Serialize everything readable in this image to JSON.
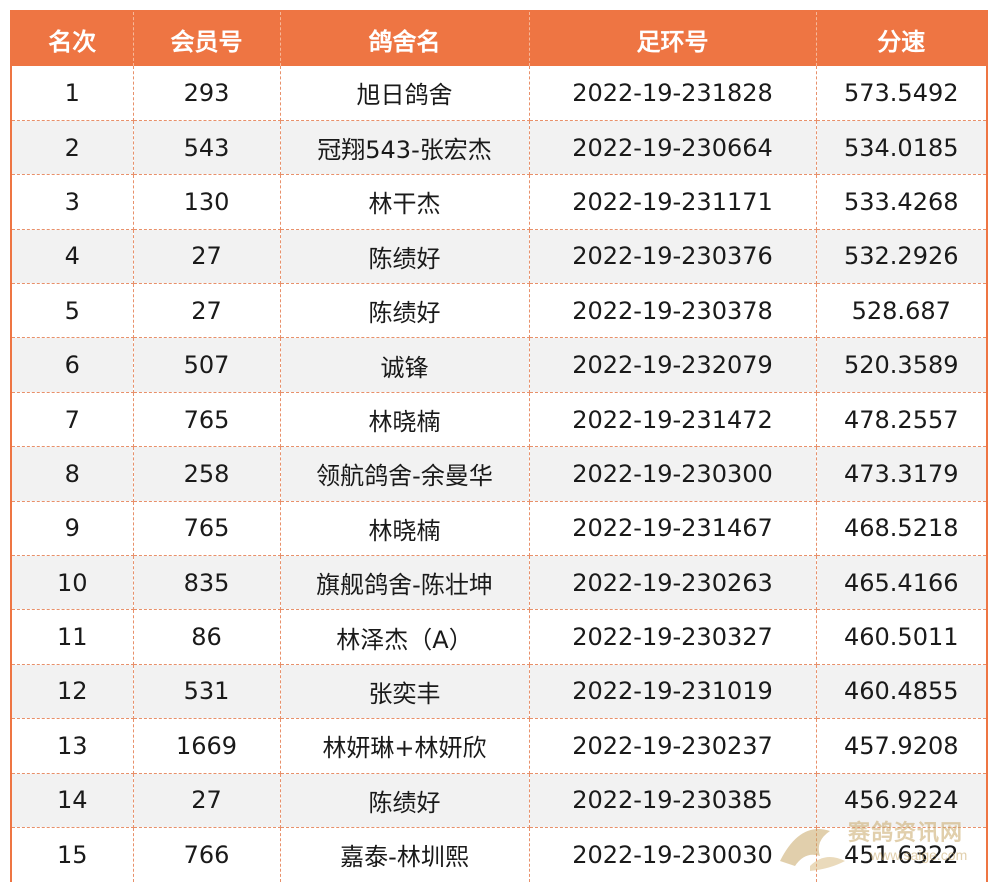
{
  "table": {
    "headers": [
      "名次",
      "会员号",
      "鸽舍名",
      "足环号",
      "分速"
    ],
    "rows": [
      {
        "rank": "1",
        "member": "293",
        "loft": "旭日鸽舍",
        "ring": "2022-19-231828",
        "speed": "573.5492"
      },
      {
        "rank": "2",
        "member": "543",
        "loft": "冠翔543-张宏杰",
        "ring": "2022-19-230664",
        "speed": "534.0185"
      },
      {
        "rank": "3",
        "member": "130",
        "loft": "林干杰",
        "ring": "2022-19-231171",
        "speed": "533.4268"
      },
      {
        "rank": "4",
        "member": "27",
        "loft": "陈绩好",
        "ring": "2022-19-230376",
        "speed": "532.2926"
      },
      {
        "rank": "5",
        "member": "27",
        "loft": "陈绩好",
        "ring": "2022-19-230378",
        "speed": "528.687"
      },
      {
        "rank": "6",
        "member": "507",
        "loft": "诚锋",
        "ring": "2022-19-232079",
        "speed": "520.3589"
      },
      {
        "rank": "7",
        "member": "765",
        "loft": "林晓楠",
        "ring": "2022-19-231472",
        "speed": "478.2557"
      },
      {
        "rank": "8",
        "member": "258",
        "loft": "领航鸽舍-余曼华",
        "ring": "2022-19-230300",
        "speed": "473.3179"
      },
      {
        "rank": "9",
        "member": "765",
        "loft": "林晓楠",
        "ring": "2022-19-231467",
        "speed": "468.5218"
      },
      {
        "rank": "10",
        "member": "835",
        "loft": "旗舰鸽舍-陈壮坤",
        "ring": "2022-19-230263",
        "speed": "465.4166"
      },
      {
        "rank": "11",
        "member": "86",
        "loft": "林泽杰（A）",
        "ring": "2022-19-230327",
        "speed": "460.5011"
      },
      {
        "rank": "12",
        "member": "531",
        "loft": "张奕丰",
        "ring": "2022-19-231019",
        "speed": "460.4855"
      },
      {
        "rank": "13",
        "member": "1669",
        "loft": "林妍琳+林妍欣",
        "ring": "2022-19-230237",
        "speed": "457.9208"
      },
      {
        "rank": "14",
        "member": "27",
        "loft": "陈绩好",
        "ring": "2022-19-230385",
        "speed": "456.9224"
      },
      {
        "rank": "15",
        "member": "766",
        "loft": "嘉泰-林圳熙",
        "ring": "2022-19-230030",
        "speed": "451.6322"
      }
    ]
  },
  "watermark": {
    "text": "赛鸽资讯网",
    "url": "www.saige.com"
  },
  "colors": {
    "header_bg": "#ee7543",
    "header_text": "#ffffff",
    "row_alt_bg": "#f2f2f2",
    "grid_line": "#e8906a"
  }
}
